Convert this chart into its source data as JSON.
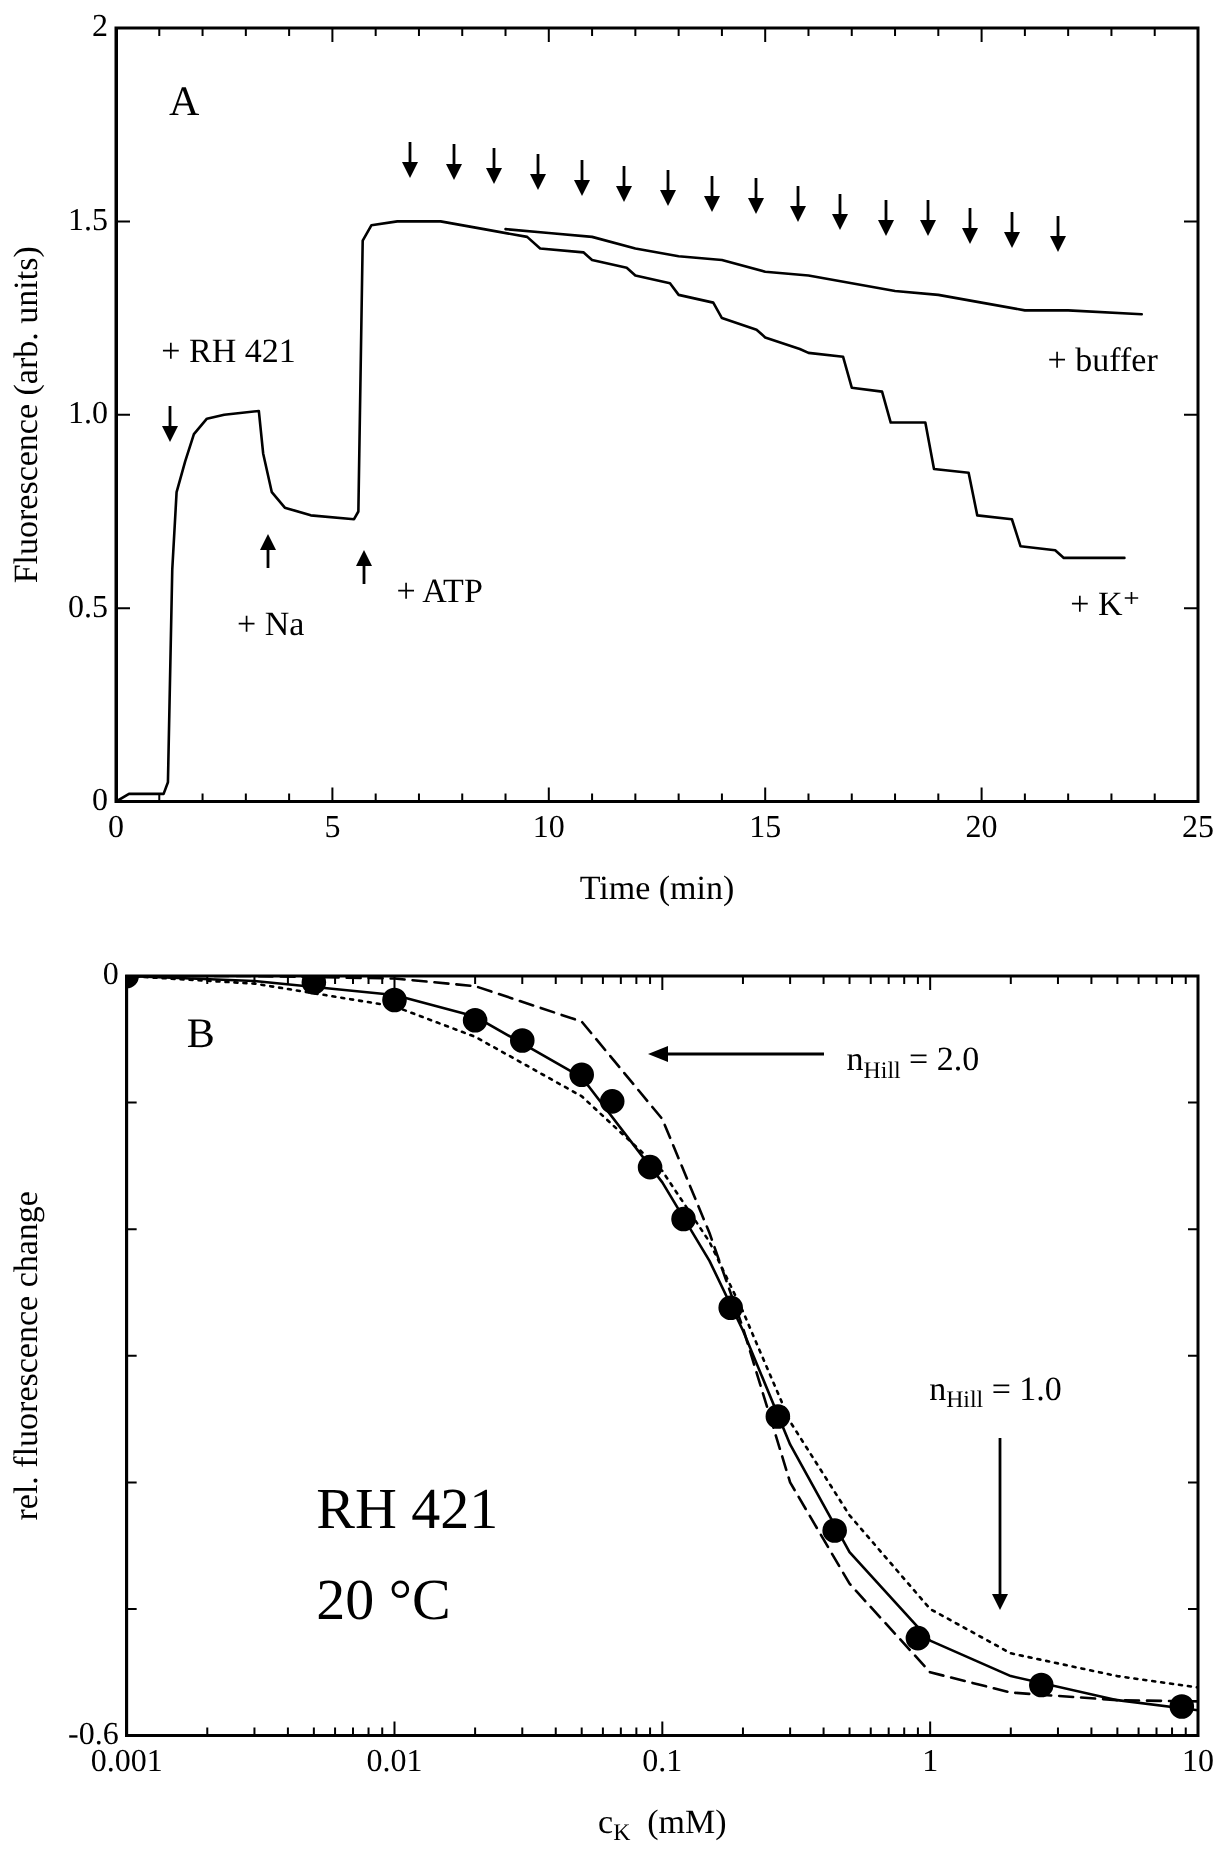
{
  "chart_data": [
    {
      "type": "line",
      "xlabel": "Time (min)",
      "ylabel": "Fluorescence (arb. units)",
      "xlim": [
        0,
        25
      ],
      "ylim": [
        0,
        2
      ],
      "xticks": [
        0,
        {
          "value": 1,
          "label": null
        },
        {
          "value": 2,
          "label": null
        },
        {
          "value": 3,
          "label": null
        },
        {
          "value": 4,
          "label": null
        },
        5,
        {
          "value": 6,
          "label": null
        },
        {
          "value": 7,
          "label": null
        },
        {
          "value": 8,
          "label": null
        },
        {
          "value": 9,
          "label": null
        },
        10,
        {
          "value": 11,
          "label": null
        },
        {
          "value": 12,
          "label": null
        },
        {
          "value": 13,
          "label": null
        },
        {
          "value": 14,
          "label": null
        },
        15,
        {
          "value": 16,
          "label": null
        },
        {
          "value": 17,
          "label": null
        },
        {
          "value": 18,
          "label": null
        },
        {
          "value": 19,
          "label": null
        },
        20,
        {
          "value": 21,
          "label": null
        },
        {
          "value": 22,
          "label": null
        },
        {
          "value": 23,
          "label": null
        },
        {
          "value": 24,
          "label": null
        },
        25
      ],
      "yticks": [
        0,
        0.5,
        {
          "value": 1,
          "label": "1.0"
        },
        1.5,
        2
      ],
      "marker": "none",
      "line_style": "solid",
      "series": [
        {
          "name": "+ K⁺",
          "color": "#000000",
          "x": [
            0,
            0.3,
            1.1,
            1.2,
            1.3,
            1.4,
            1.6,
            1.8,
            2.1,
            2.5,
            3.3,
            3.4,
            3.6,
            3.9,
            4.5,
            5.5,
            5.6,
            5.7,
            5.9,
            6.5,
            7.5,
            8.5,
            9.5,
            9.8,
            10.8,
            11.0,
            11.8,
            12.0,
            12.8,
            13.0,
            13.8,
            14.0,
            14.8,
            15.0,
            15.8,
            16.0,
            16.8,
            17.0,
            17.7,
            17.9,
            18.7,
            18.9,
            19.7,
            19.9,
            20.7,
            20.9,
            21.7,
            21.9,
            23.3
          ],
          "values": [
            0,
            0.02,
            0.02,
            0.05,
            0.6,
            0.8,
            0.88,
            0.95,
            0.99,
            1.0,
            1.01,
            0.9,
            0.8,
            0.76,
            0.74,
            0.73,
            0.75,
            1.45,
            1.49,
            1.5,
            1.5,
            1.48,
            1.46,
            1.43,
            1.42,
            1.4,
            1.38,
            1.36,
            1.34,
            1.31,
            1.29,
            1.25,
            1.22,
            1.2,
            1.17,
            1.16,
            1.15,
            1.07,
            1.06,
            0.98,
            0.98,
            0.86,
            0.85,
            0.74,
            0.73,
            0.66,
            0.65,
            0.63,
            0.63
          ]
        },
        {
          "name": "+ buffer",
          "color": "#000000",
          "x": [
            9,
            10,
            11,
            12,
            13,
            14,
            15,
            16,
            17,
            18,
            19,
            20,
            21,
            22,
            23.7
          ],
          "values": [
            1.48,
            1.47,
            1.46,
            1.43,
            1.41,
            1.4,
            1.37,
            1.36,
            1.34,
            1.32,
            1.31,
            1.29,
            1.27,
            1.27,
            1.26
          ]
        }
      ],
      "annotations": [
        "A",
        "+ RH 421",
        "+ Na",
        "+ ATP"
      ]
    },
    {
      "type": "scatter",
      "xlabel": "c$_{K}$  (mM)",
      "ylabel": "rel. fluorescence change",
      "log": "x",
      "xlim": [
        0.001,
        10
      ],
      "ylim": [
        -0.6,
        0
      ],
      "xticks": [
        0.001,
        {
          "value": 0.002,
          "label": null
        },
        {
          "value": 0.003,
          "label": null
        },
        {
          "value": 0.004,
          "label": null
        },
        {
          "value": 0.005,
          "label": null
        },
        {
          "value": 0.006,
          "label": null
        },
        {
          "value": 0.007,
          "label": null
        },
        {
          "value": 0.008,
          "label": null
        },
        {
          "value": 0.009,
          "label": null
        },
        0.01,
        {
          "value": 0.02,
          "label": null
        },
        {
          "value": 0.03,
          "label": null
        },
        {
          "value": 0.04,
          "label": null
        },
        {
          "value": 0.05,
          "label": null
        },
        {
          "value": 0.06,
          "label": null
        },
        {
          "value": 0.07,
          "label": null
        },
        {
          "value": 0.08,
          "label": null
        },
        {
          "value": 0.09,
          "label": null
        },
        0.1,
        {
          "value": 0.2,
          "label": null
        },
        {
          "value": 0.3,
          "label": null
        },
        {
          "value": 0.4,
          "label": null
        },
        {
          "value": 0.5,
          "label": null
        },
        {
          "value": 0.6,
          "label": null
        },
        {
          "value": 0.7,
          "label": null
        },
        {
          "value": 0.8,
          "label": null
        },
        {
          "value": 0.9,
          "label": null
        },
        1,
        {
          "value": 2,
          "label": null
        },
        {
          "value": 3,
          "label": null
        },
        {
          "value": 4,
          "label": null
        },
        {
          "value": 5,
          "label": null
        },
        {
          "value": 6,
          "label": null
        },
        {
          "value": 7,
          "label": null
        },
        {
          "value": 8,
          "label": null
        },
        {
          "value": 9,
          "label": null
        },
        10
      ],
      "yticks": [
        0,
        {
          "value": -0.1,
          "label": null
        },
        {
          "value": -0.2,
          "label": null
        },
        {
          "value": -0.3,
          "label": null
        },
        {
          "value": -0.4,
          "label": null
        },
        {
          "value": -0.5,
          "label": null
        },
        -0.6
      ],
      "series": [
        {
          "type": "scatter",
          "marker": "circle",
          "color": "#000000",
          "x": [
            0.001,
            0.005,
            0.01,
            0.02,
            0.03,
            0.05,
            0.065,
            0.09,
            0.12,
            0.18,
            0.27,
            0.44,
            0.9,
            2.6,
            8.7
          ],
          "values": [
            0,
            -0.005,
            -0.019,
            -0.035,
            -0.051,
            -0.078,
            -0.099,
            -0.151,
            -0.192,
            -0.262,
            -0.348,
            -0.438,
            -0.523,
            -0.56,
            -0.577
          ]
        },
        {
          "type": "line",
          "line_style": "solid",
          "marker": "none",
          "color": "#000000",
          "x": [
            0.001,
            0.003,
            0.01,
            0.02,
            0.05,
            0.1,
            0.15,
            0.2,
            0.3,
            0.5,
            1,
            2,
            5,
            10
          ],
          "values": [
            0,
            -0.004,
            -0.015,
            -0.032,
            -0.08,
            -0.163,
            -0.225,
            -0.28,
            -0.37,
            -0.455,
            -0.525,
            -0.553,
            -0.572,
            -0.58
          ]
        },
        {
          "type": "line",
          "line_style": "dashed",
          "marker": "none",
          "color": "#000000",
          "x": [
            0.001,
            0.003,
            0.01,
            0.02,
            0.05,
            0.1,
            0.15,
            0.2,
            0.3,
            0.5,
            1,
            2,
            5,
            10
          ],
          "values": [
            0,
            0,
            -0.002,
            -0.008,
            -0.036,
            -0.113,
            -0.203,
            -0.278,
            -0.4,
            -0.48,
            -0.55,
            -0.566,
            -0.572,
            -0.573
          ]
        },
        {
          "type": "line",
          "line_style": "dotted",
          "marker": "none",
          "color": "#000000",
          "x": [
            0.001,
            0.003,
            0.01,
            0.02,
            0.05,
            0.1,
            0.15,
            0.2,
            0.3,
            0.5,
            1,
            2,
            5,
            10
          ],
          "values": [
            0,
            -0.006,
            -0.024,
            -0.048,
            -0.095,
            -0.154,
            -0.21,
            -0.265,
            -0.352,
            -0.426,
            -0.5,
            -0.535,
            -0.553,
            -0.562
          ]
        }
      ],
      "annotations": [
        "B",
        "RH 421",
        "20 °C",
        "n$_{Hill}$ = 2.0",
        "n$_{Hill}$ = 1.0"
      ]
    }
  ]
}
